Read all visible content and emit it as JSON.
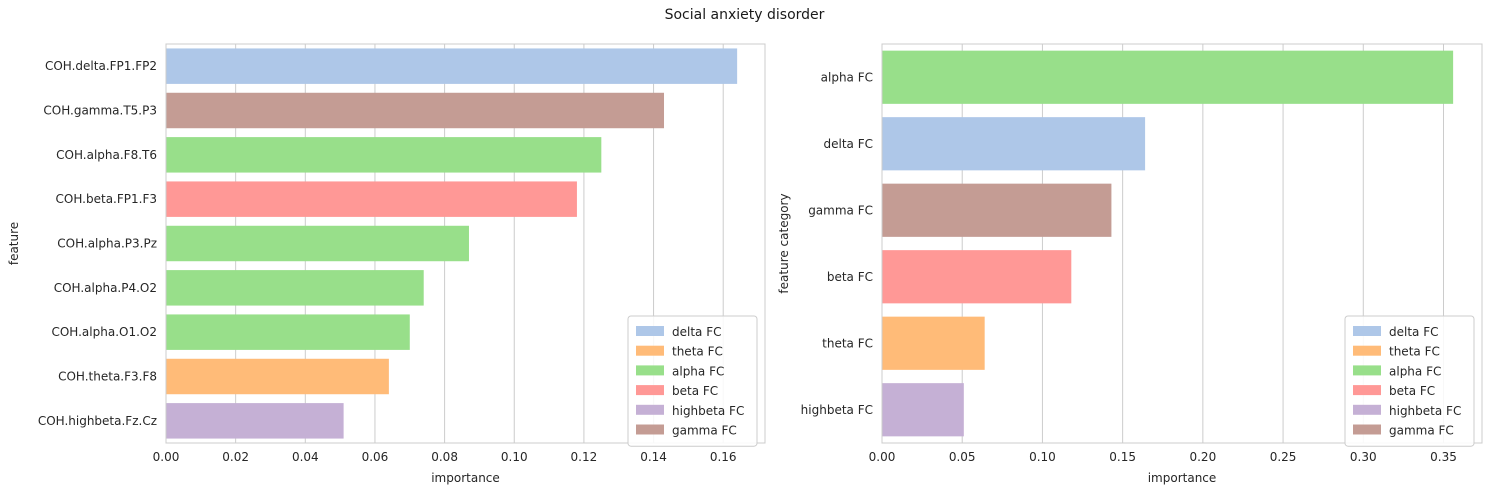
{
  "figure_title": "Social anxiety disorder",
  "colors": {
    "delta FC": "#aec7e8",
    "theta FC": "#ffbb78",
    "alpha FC": "#98df8a",
    "beta FC": "#ff9896",
    "highbeta FC": "#c5b0d5",
    "gamma FC": "#c49c94"
  },
  "chart_data": [
    {
      "type": "bar",
      "orientation": "horizontal",
      "xlabel": "importance",
      "ylabel": "feature",
      "xlim": [
        0,
        0.172
      ],
      "xticks": [
        "0.00",
        "0.02",
        "0.04",
        "0.06",
        "0.08",
        "0.10",
        "0.12",
        "0.14",
        "0.16"
      ],
      "grid": true,
      "legend_position": "lower-right",
      "legend": [
        "delta FC",
        "theta FC",
        "alpha FC",
        "beta FC",
        "highbeta FC",
        "gamma FC"
      ],
      "categories": [
        "COH.delta.FP1.FP2",
        "COH.gamma.T5.P3",
        "COH.alpha.F8.T6",
        "COH.beta.FP1.F3",
        "COH.alpha.P3.Pz",
        "COH.alpha.P4.O2",
        "COH.alpha.O1.O2",
        "COH.theta.F3.F8",
        "COH.highbeta.Fz.Cz"
      ],
      "values": [
        0.164,
        0.143,
        0.125,
        0.118,
        0.087,
        0.074,
        0.07,
        0.064,
        0.051
      ],
      "groups": [
        "delta FC",
        "gamma FC",
        "alpha FC",
        "beta FC",
        "alpha FC",
        "alpha FC",
        "alpha FC",
        "theta FC",
        "highbeta FC"
      ]
    },
    {
      "type": "bar",
      "orientation": "horizontal",
      "xlabel": "importance",
      "ylabel": "feature category",
      "xlim": [
        0,
        0.374
      ],
      "xticks": [
        "0.00",
        "0.05",
        "0.10",
        "0.15",
        "0.20",
        "0.25",
        "0.30",
        "0.35"
      ],
      "grid": true,
      "legend_position": "lower-right",
      "legend": [
        "delta FC",
        "theta FC",
        "alpha FC",
        "beta FC",
        "highbeta FC",
        "gamma FC"
      ],
      "categories": [
        "alpha FC",
        "delta FC",
        "gamma FC",
        "beta FC",
        "theta FC",
        "highbeta FC"
      ],
      "values": [
        0.356,
        0.164,
        0.143,
        0.118,
        0.064,
        0.051
      ],
      "groups": [
        "alpha FC",
        "delta FC",
        "gamma FC",
        "beta FC",
        "theta FC",
        "highbeta FC"
      ]
    }
  ]
}
